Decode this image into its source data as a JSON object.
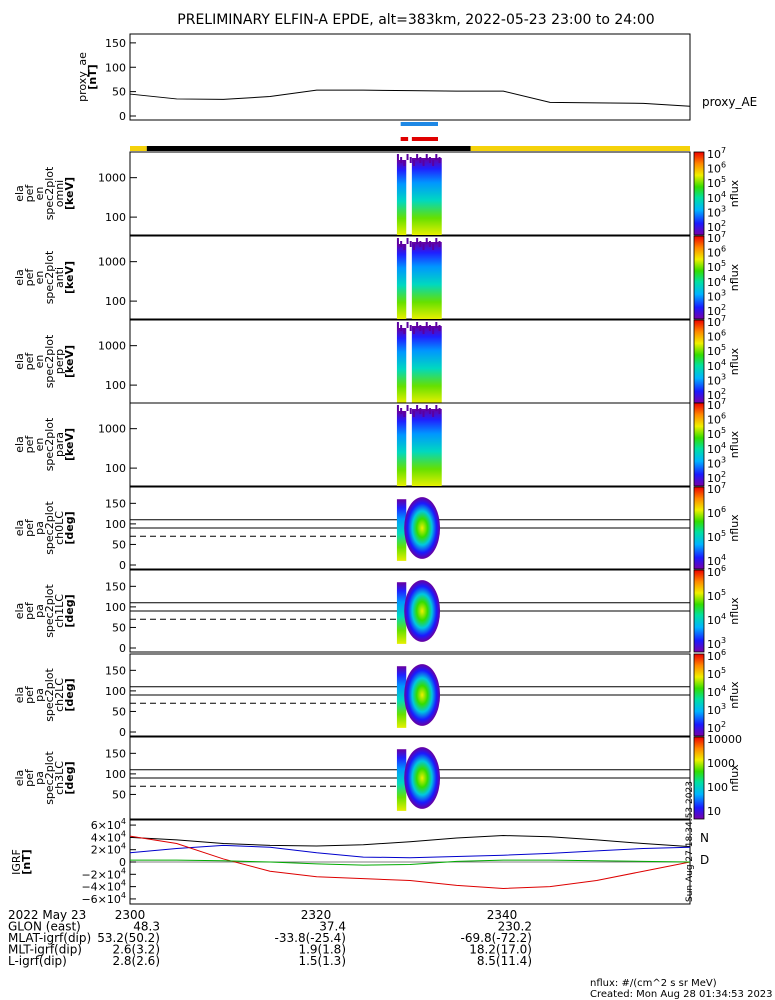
{
  "title": "PRELIMINARY ELFIN-A EPDE, alt=383km, 2022-05-23 23:00 to 24:00",
  "colorbar_unit": "nflux",
  "chart_data": [
    {
      "type": "line",
      "name": "proxy_ae",
      "ylabel": "proxy_ae",
      "yunit": "[nT]",
      "legend": "proxy_AE",
      "ylim": [
        0,
        160
      ],
      "yticks": [
        "150",
        "100",
        "50",
        "0"
      ],
      "x_minutes": [
        0,
        5,
        10,
        15,
        20,
        25,
        30,
        35,
        40,
        45,
        50,
        55,
        60
      ],
      "values": [
        45,
        35,
        34,
        40,
        53,
        53,
        52,
        51,
        51,
        28,
        27,
        26,
        20
      ],
      "flags": {
        "blue_bar": [
          29.0,
          33.0
        ],
        "red_bars": [
          [
            29.0,
            29.8
          ],
          [
            30.2,
            33.0
          ]
        ],
        "track_segments": [
          {
            "from": 0.0,
            "to": 1.8,
            "color": "#f5d20a"
          },
          {
            "from": 1.8,
            "to": 36.5,
            "color": "#000000"
          },
          {
            "from": 36.5,
            "to": 60.0,
            "color": "#f5d20a"
          }
        ]
      }
    },
    {
      "type": "heatmap",
      "ylabel": [
        "ela",
        "pef",
        "en",
        "spec2plot",
        "omni"
      ],
      "yunit": "[keV]",
      "yticks": [
        "1000",
        "100"
      ],
      "cbar_ticks": [
        "10^7",
        "10^6",
        "10^5",
        "10^4",
        "10^3",
        "10^2"
      ],
      "cbar_label": "nflux"
    },
    {
      "type": "heatmap",
      "ylabel": [
        "ela",
        "pef",
        "en",
        "spec2plot",
        "anti"
      ],
      "yunit": "[keV]",
      "yticks": [
        "1000",
        "100"
      ],
      "cbar_ticks": [
        "10^7",
        "10^6",
        "10^5",
        "10^4",
        "10^3",
        "10^2"
      ],
      "cbar_label": "nflux"
    },
    {
      "type": "heatmap",
      "ylabel": [
        "ela",
        "pef",
        "en",
        "spec2plot",
        "perp"
      ],
      "yunit": "[keV]",
      "yticks": [
        "1000",
        "100"
      ],
      "cbar_ticks": [
        "10^7",
        "10^6",
        "10^5",
        "10^4",
        "10^3",
        "10^2"
      ],
      "cbar_label": "nflux"
    },
    {
      "type": "heatmap",
      "ylabel": [
        "ela",
        "pef",
        "en",
        "spec2plot",
        "para"
      ],
      "yunit": "[keV]",
      "yticks": [
        "1000",
        "100"
      ],
      "cbar_ticks": [
        "10^7",
        "10^6",
        "10^5",
        "10^4",
        "10^3",
        "10^2"
      ],
      "cbar_label": "nflux"
    },
    {
      "type": "heatmap",
      "ylabel": [
        "ela",
        "pef",
        "pa",
        "spec2plot",
        "ch0LC"
      ],
      "yunit": "[deg]",
      "yticks": [
        "150",
        "100",
        "50",
        "0"
      ],
      "ylim": [
        0,
        180
      ],
      "cbar_ticks": [
        "10^7",
        "10^6",
        "10^5",
        "10^4"
      ],
      "cbar_label": "nflux"
    },
    {
      "type": "heatmap",
      "ylabel": [
        "ela",
        "pef",
        "pa",
        "spec2plot",
        "ch1LC"
      ],
      "yunit": "[deg]",
      "yticks": [
        "150",
        "100",
        "50",
        "0"
      ],
      "ylim": [
        0,
        180
      ],
      "cbar_ticks": [
        "10^6",
        "10^5",
        "10^4",
        "10^3"
      ],
      "cbar_label": "nflux"
    },
    {
      "type": "heatmap",
      "ylabel": [
        "ela",
        "pef",
        "pa",
        "spec2plot",
        "ch2LC"
      ],
      "yunit": "[deg]",
      "yticks": [
        "150",
        "100",
        "50",
        "0"
      ],
      "ylim": [
        0,
        180
      ],
      "cbar_ticks": [
        "10^6",
        "10^5",
        "10^4",
        "10^3",
        "10^2"
      ],
      "cbar_label": "nflux"
    },
    {
      "type": "heatmap",
      "ylabel": [
        "ela",
        "pef",
        "pa",
        "spec2plot",
        "ch3LC"
      ],
      "yunit": "[deg]",
      "yticks": [
        "150",
        "100",
        "50"
      ],
      "ylim": [
        0,
        180
      ],
      "cbar_ticks": [
        "10000",
        "1000",
        "100",
        "10"
      ],
      "cbar_label": "nflux"
    },
    {
      "type": "line",
      "ylabel": "IGRF",
      "yunit": "[nT]",
      "ylim": [
        -65000,
        65000
      ],
      "ytick_mantissa": [
        "6",
        "4",
        "2",
        "0",
        "−2",
        "−4",
        "−6"
      ],
      "ytick_exp": "4",
      "x_minutes": [
        0,
        5,
        10,
        15,
        20,
        25,
        30,
        35,
        40,
        45,
        50,
        55,
        60
      ],
      "series": [
        {
          "name": "N",
          "color": "#000000",
          "values": [
            40000,
            36000,
            30000,
            27000,
            26000,
            28000,
            33000,
            39000,
            43000,
            41000,
            36000,
            30000,
            25000
          ]
        },
        {
          "name": "E",
          "color": "#0000cc",
          "values": [
            15000,
            22000,
            27000,
            24000,
            15000,
            8000,
            7000,
            9000,
            11000,
            14000,
            18000,
            22000,
            24000
          ]
        },
        {
          "name": "D",
          "color": "#dd0000",
          "values": [
            42000,
            30000,
            5000,
            -15000,
            -24000,
            -27000,
            -30000,
            -38000,
            -43000,
            -40000,
            -30000,
            -15000,
            0
          ]
        },
        {
          "name": "",
          "color": "#00aa00",
          "values": [
            3000,
            3000,
            2000,
            0,
            -3000,
            -5000,
            -4000,
            1000,
            3000,
            3000,
            2000,
            1000,
            0
          ]
        }
      ],
      "legend": [
        "N",
        "D"
      ]
    }
  ],
  "side_note": "Sun Aug 27 18:34:53 2023",
  "footer": {
    "rows": [
      {
        "label": "2022 May 23",
        "values": [
          "2300",
          "2320",
          "2340"
        ]
      },
      {
        "label": "GLON (east)",
        "values": [
          "48.3",
          "37.4",
          "230.2"
        ]
      },
      {
        "label": "MLAT-igrf(dip)",
        "values": [
          "53.2(50.2)",
          "-33.8(-25.4)",
          "-69.8(-72.2)"
        ]
      },
      {
        "label": "MLT-igrf(dip)",
        "values": [
          "2.6(3.2)",
          "1.9(1.8)",
          "18.2(17.0)"
        ]
      },
      {
        "label": "L-igrf(dip)",
        "values": [
          "2.8(2.6)",
          "1.5(1.3)",
          "8.5(11.4)"
        ]
      }
    ],
    "unit_note": "nflux: #/(cm^2 s sr MeV)",
    "created": "Created: Mon Aug 28 01:34:53 2023"
  }
}
